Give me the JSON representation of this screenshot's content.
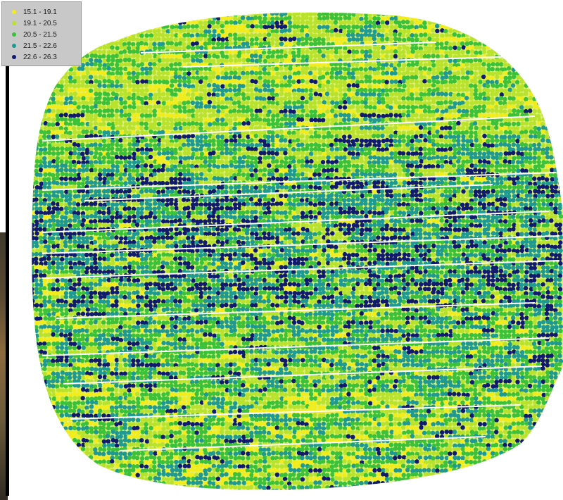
{
  "legend": {
    "classes": [
      {
        "label": "15.1 - 19.1",
        "color": "#f2ec1a"
      },
      {
        "label": "19.1 - 20.5",
        "color": "#b8e22c"
      },
      {
        "label": "20.5 - 21.5",
        "color": "#3bc13a"
      },
      {
        "label": "21.5 - 22.6",
        "color": "#1f9a92"
      },
      {
        "label": "22.6 - 26.3",
        "color": "#101a6e"
      }
    ]
  },
  "map": {
    "background": "#ffffff",
    "symbol": "point-dots"
  }
}
